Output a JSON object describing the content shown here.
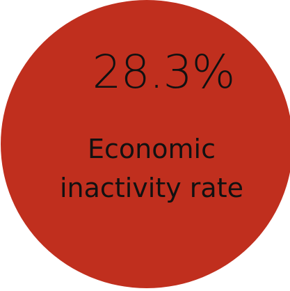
{
  "stat": {
    "value": "28.3%",
    "label_line1": "Economic",
    "label_line2": "inactivity rate",
    "circle_color": "#c02f1e",
    "text_color": "#111111"
  }
}
